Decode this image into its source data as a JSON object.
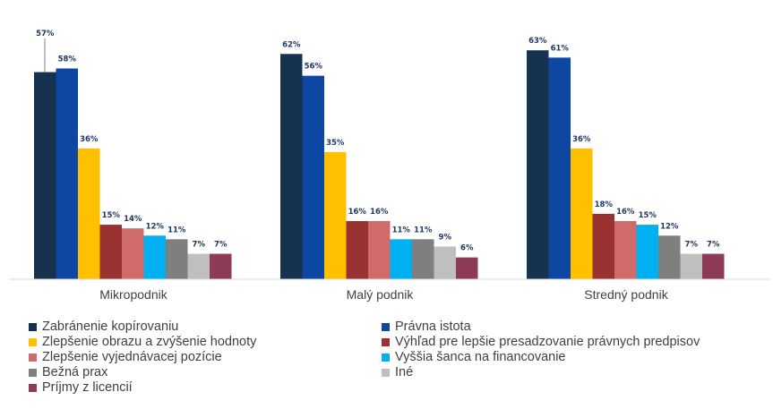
{
  "chart_data": {
    "type": "bar",
    "categories": [
      "Mikropodnik",
      "Malý podnik",
      "Stredný podnik"
    ],
    "series": [
      {
        "name": "Zabránenie kopírovaniu",
        "color": "#17324f",
        "values": [
          57,
          62,
          63
        ]
      },
      {
        "name": "Právna istota",
        "color": "#0d47a1",
        "values": [
          58,
          56,
          61
        ]
      },
      {
        "name": "Zlepšenie obrazu a zvýšenie hodnoty",
        "color": "#ffc000",
        "values": [
          36,
          35,
          36
        ]
      },
      {
        "name": "Výhľad pre lepšie presadzovanie právnych predpisov",
        "color": "#9a3232",
        "values": [
          15,
          16,
          18
        ]
      },
      {
        "name": "Zlepšenie vyjednávacej pozície",
        "color": "#d06b6b",
        "values": [
          14,
          16,
          16
        ]
      },
      {
        "name": "Vyššia šanca na financovanie",
        "color": "#00b0f0",
        "values": [
          12,
          11,
          15
        ]
      },
      {
        "name": "Bežná prax",
        "color": "#7f7f7f",
        "values": [
          11,
          11,
          12
        ]
      },
      {
        "name": "Iné",
        "color": "#bfbfbf",
        "values": [
          7,
          9,
          7
        ]
      },
      {
        "name": "Príjmy z licencií",
        "color": "#8e3a59",
        "values": [
          7,
          6,
          7
        ]
      }
    ],
    "value_labels": [
      [
        "57%",
        "58%",
        "36%",
        "15%",
        "14%",
        "12%",
        "11%",
        "7%",
        "7%"
      ],
      [
        "62%",
        "56%",
        "35%",
        "16%",
        "16%",
        "11%",
        "11%",
        "9%",
        "6%"
      ],
      [
        "63%",
        "61%",
        "36%",
        "18%",
        "16%",
        "15%",
        "12%",
        "7%",
        "7%"
      ]
    ],
    "ylim": [
      0,
      63
    ],
    "legend_position": "bottom"
  }
}
